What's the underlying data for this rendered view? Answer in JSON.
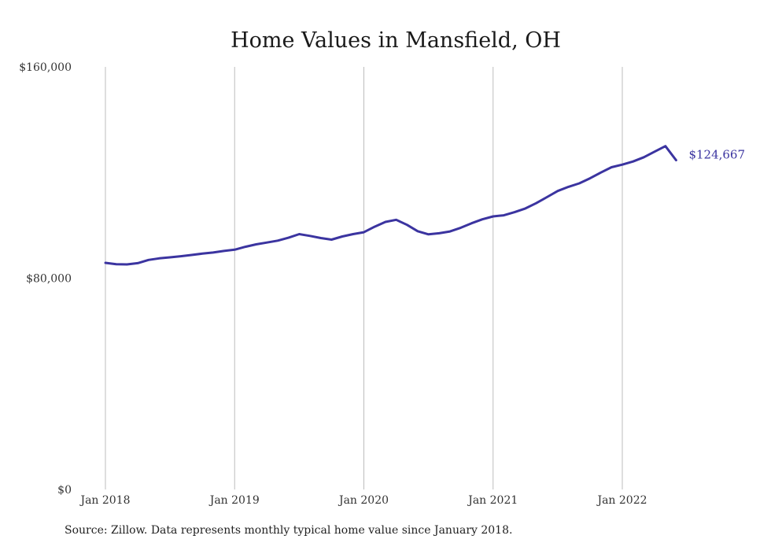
{
  "chart_data": {
    "type": "line",
    "title": "Home Values in Mansfield, OH",
    "xlabel": "",
    "ylabel": "",
    "ylim": [
      0,
      160000
    ],
    "y_ticks": [
      {
        "value": 0,
        "label": "$0"
      },
      {
        "value": 80000,
        "label": "$80,000"
      },
      {
        "value": 160000,
        "label": "$160,000"
      }
    ],
    "x_ticks": [
      {
        "value": 0,
        "label": "Jan 2018"
      },
      {
        "value": 12,
        "label": "Jan 2019"
      },
      {
        "value": 24,
        "label": "Jan 2020"
      },
      {
        "value": 36,
        "label": "Jan 2021"
      },
      {
        "value": 48,
        "label": "Jan 2022"
      }
    ],
    "grid": "vertical at x ticks",
    "line_color": "#3b34a0",
    "end_label": "$124,667",
    "series": [
      {
        "values": [
          85800,
          85300,
          85200,
          85700,
          86900,
          87500,
          87900,
          88300,
          88800,
          89300,
          89700,
          90300,
          90800,
          91900,
          92800,
          93500,
          94200,
          95300,
          96700,
          96000,
          95200,
          94600,
          95800,
          96700,
          97400,
          99500,
          101300,
          102100,
          100200,
          97800,
          96600,
          97000,
          97700,
          99100,
          100800,
          102300,
          103400,
          103800,
          105000,
          106400,
          108400,
          110700,
          113000,
          114600,
          115900,
          117800,
          120000,
          122000,
          123000,
          124200,
          125800,
          127900,
          130000,
          124667
        ]
      }
    ]
  },
  "source_note": "Source: Zillow. Data represents monthly typical home value since January 2018."
}
